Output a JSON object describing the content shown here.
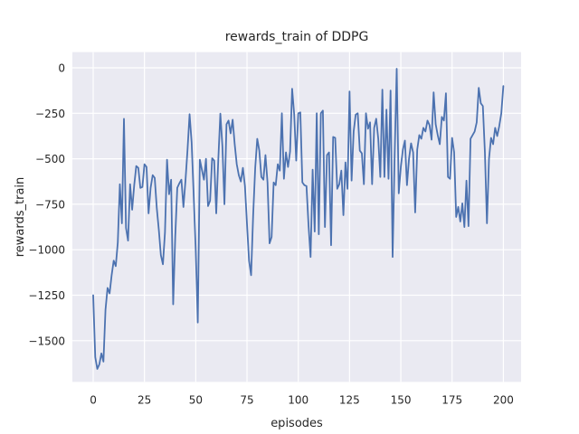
{
  "figure": {
    "title": "rewards_train of DDPG",
    "xlabel": "episodes",
    "ylabel": "rewards_train"
  },
  "chart_data": {
    "type": "line",
    "title": "rewards_train of DDPG",
    "xlabel": "episodes",
    "ylabel": "rewards_train",
    "grid": true,
    "legend": false,
    "style": "seaborn-darkgrid",
    "background_color": "#eaeaf2",
    "grid_color": "#ffffff",
    "line_color": "#4c72b0",
    "text_color": "#262626",
    "x_ticks": [
      0,
      25,
      50,
      75,
      100,
      125,
      150,
      175,
      200
    ],
    "y_ticks": [
      0,
      -250,
      -500,
      -750,
      -1000,
      -1250,
      -1500
    ],
    "xlim": [
      -10.15,
      208.65
    ],
    "ylim": [
      -1726.6,
      86.5
    ],
    "series": [
      {
        "name": "rewards_train",
        "x_start": 0,
        "x_step": 1,
        "values": [
          -1250,
          -1590,
          -1655,
          -1630,
          -1570,
          -1615,
          -1330,
          -1210,
          -1240,
          -1140,
          -1060,
          -1090,
          -960,
          -640,
          -855,
          -280,
          -880,
          -950,
          -640,
          -780,
          -645,
          -540,
          -550,
          -660,
          -655,
          -530,
          -545,
          -800,
          -660,
          -590,
          -605,
          -770,
          -890,
          -1030,
          -1080,
          -905,
          -505,
          -695,
          -615,
          -1300,
          -930,
          -660,
          -635,
          -615,
          -765,
          -620,
          -450,
          -255,
          -410,
          -700,
          -1000,
          -1400,
          -505,
          -560,
          -615,
          -500,
          -760,
          -730,
          -497,
          -510,
          -800,
          -505,
          -252,
          -430,
          -750,
          -310,
          -290,
          -360,
          -285,
          -420,
          -530,
          -590,
          -625,
          -550,
          -650,
          -860,
          -1060,
          -1140,
          -810,
          -550,
          -390,
          -455,
          -600,
          -615,
          -480,
          -630,
          -965,
          -930,
          -630,
          -645,
          -530,
          -565,
          -250,
          -610,
          -465,
          -545,
          -460,
          -115,
          -255,
          -510,
          -250,
          -245,
          -630,
          -645,
          -650,
          -865,
          -1040,
          -560,
          -900,
          -250,
          -915,
          -250,
          -235,
          -875,
          -480,
          -465,
          -975,
          -380,
          -385,
          -665,
          -640,
          -565,
          -810,
          -520,
          -665,
          -130,
          -620,
          -350,
          -257,
          -250,
          -455,
          -470,
          -640,
          -250,
          -335,
          -300,
          -640,
          -330,
          -280,
          -390,
          -600,
          -120,
          -600,
          -230,
          -610,
          -125,
          -1040,
          -480,
          -5,
          -690,
          -545,
          -450,
          -400,
          -645,
          -500,
          -415,
          -465,
          -795,
          -450,
          -370,
          -390,
          -330,
          -350,
          -290,
          -315,
          -395,
          -135,
          -310,
          -370,
          -420,
          -270,
          -290,
          -140,
          -600,
          -610,
          -385,
          -465,
          -820,
          -765,
          -845,
          -745,
          -875,
          -620,
          -870,
          -390,
          -370,
          -350,
          -300,
          -110,
          -195,
          -210,
          -465,
          -855,
          -500,
          -385,
          -420,
          -330,
          -375,
          -320,
          -250,
          -100
        ]
      }
    ]
  }
}
